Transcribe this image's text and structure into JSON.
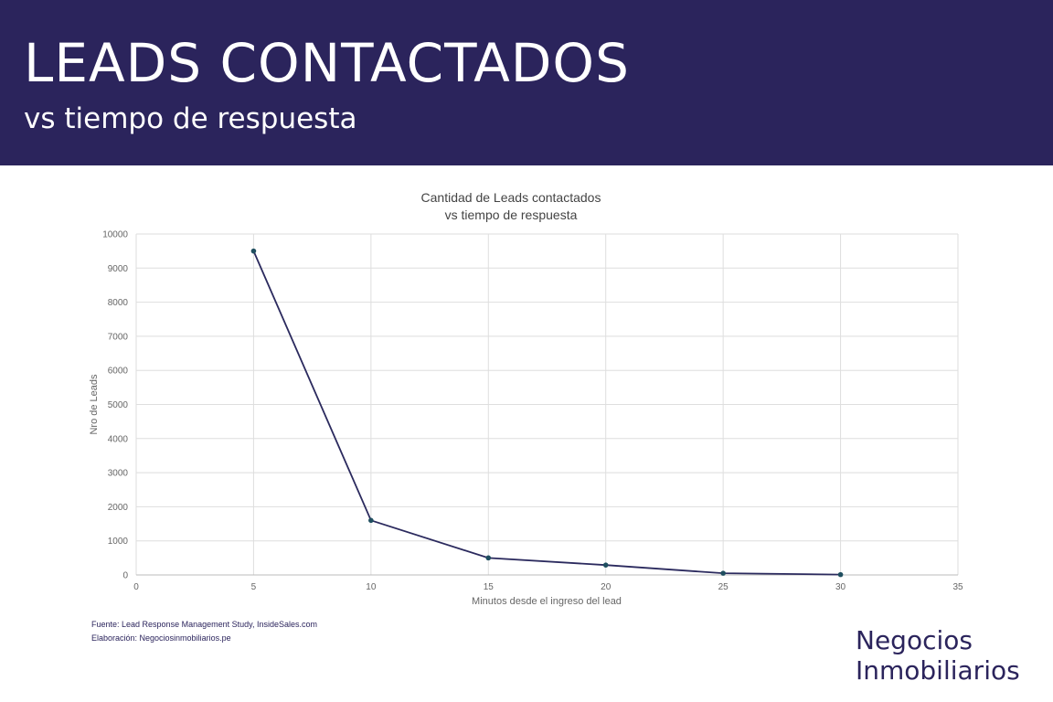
{
  "header": {
    "title": "LEADS CONTACTADOS",
    "subtitle": "vs tiempo de respuesta"
  },
  "chart_data": {
    "type": "line",
    "title": [
      "Cantidad de Leads contactados",
      "vs tiempo de respuesta"
    ],
    "xlabel": "Minutos  desde el ingreso del lead",
    "ylabel": "Nro de Leads",
    "xlim": [
      0,
      35
    ],
    "ylim": [
      0,
      10000
    ],
    "x_ticks": [
      0,
      5,
      10,
      15,
      20,
      25,
      30,
      35
    ],
    "y_ticks": [
      0,
      1000,
      2000,
      3000,
      4000,
      5000,
      6000,
      7000,
      8000,
      9000,
      10000
    ],
    "grid": true,
    "series": [
      {
        "x": [
          5,
          10,
          15,
          20,
          25,
          30
        ],
        "values": [
          9500,
          1600,
          500,
          290,
          50,
          10
        ]
      }
    ],
    "colors": {
      "line": "#2b2a5e",
      "marker": "#1f4e5f",
      "grid": "#dedede",
      "text": "#666666"
    }
  },
  "footer": {
    "source": "Fuente: Lead Response Management Study, InsideSales.com",
    "credit": "Elaboración: Negociosinmobiliarios.pe"
  },
  "brand": {
    "line1": "Negocios",
    "line2": "Inmobiliarios"
  },
  "colors": {
    "banner": "#2b245c",
    "brand": "#2b245c"
  }
}
